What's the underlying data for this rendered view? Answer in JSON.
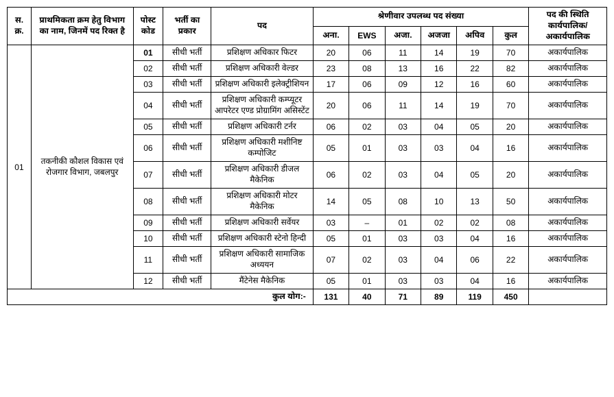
{
  "table": {
    "widths_pct": [
      4,
      17,
      5,
      8,
      17,
      6,
      6,
      6,
      6,
      6,
      6,
      13
    ],
    "header": {
      "sno": "स.\nक्र.",
      "dept": "प्राथमिकता क्रम हेतु विभाग का नाम, जिनमें पद रिक्त है",
      "postcode": "पोस्ट कोड",
      "rectype": "भर्ती का प्रकार",
      "post": "पद",
      "catgroup": "श्रेणीवार उपलब्ध पद संख्या",
      "c1": "अना.",
      "c2": "EWS",
      "c3": "अजा.",
      "c4": "अजजा",
      "c5": "अपिव",
      "c6": "कुल",
      "status": "पद की स्थिति कार्यपालिक/ अकार्यपालिक"
    },
    "dept_sno": "01",
    "dept_name": "तकनीकी कौशल विकास एवं रोजगार विभाग, जबलपुर",
    "rows": [
      {
        "code": "01",
        "type": "सीधी भर्ती",
        "post": "प्रशिक्षण अधिकार फिटर",
        "c1": "20",
        "c2": "06",
        "c3": "11",
        "c4": "14",
        "c5": "19",
        "c6": "70",
        "status": "अकार्यपालिक",
        "bold": true
      },
      {
        "code": "02",
        "type": "सीधी भर्ती",
        "post": "प्रशिक्षण अधिकारी वेल्डर",
        "c1": "23",
        "c2": "08",
        "c3": "13",
        "c4": "16",
        "c5": "22",
        "c6": "82",
        "status": "अकार्यपालिक"
      },
      {
        "code": "03",
        "type": "सीधी भर्ती",
        "post": "प्रशिक्षण अधिकारी इलेक्ट्रीशियन",
        "c1": "17",
        "c2": "06",
        "c3": "09",
        "c4": "12",
        "c5": "16",
        "c6": "60",
        "status": "अकार्यपालिक"
      },
      {
        "code": "04",
        "type": "सीधी भर्ती",
        "post": "प्रशिक्षण अधिकारी कम्प्यूटर आपरेटर एण्ड प्रोग्रामिंग असिस्टेंट",
        "c1": "20",
        "c2": "06",
        "c3": "11",
        "c4": "14",
        "c5": "19",
        "c6": "70",
        "status": "अकार्यपालिक"
      },
      {
        "code": "05",
        "type": "सीधी भर्ती",
        "post": "प्रशिक्षण अधिकारी टर्नर",
        "c1": "06",
        "c2": "02",
        "c3": "03",
        "c4": "04",
        "c5": "05",
        "c6": "20",
        "status": "अकार्यपालिक"
      },
      {
        "code": "06",
        "type": "सीधी भर्ती",
        "post": "प्रशिक्षण अधिकारी मशीनिष्ट कम्पोजिट",
        "c1": "05",
        "c2": "01",
        "c3": "03",
        "c4": "03",
        "c5": "04",
        "c6": "16",
        "status": "अकार्यपालिक"
      },
      {
        "code": "07",
        "type": "सीधी भर्ती",
        "post": "प्रशिक्षण अधिकारी डीजल मैकेनिक",
        "c1": "06",
        "c2": "02",
        "c3": "03",
        "c4": "04",
        "c5": "05",
        "c6": "20",
        "status": "अकार्यपालिक"
      },
      {
        "code": "08",
        "type": "सीधी भर्ती",
        "post": "प्रशिक्षण अधिकारी मोटर मैकेनिक",
        "c1": "14",
        "c2": "05",
        "c3": "08",
        "c4": "10",
        "c5": "13",
        "c6": "50",
        "status": "अकार्यपालिक"
      },
      {
        "code": "09",
        "type": "सीधी भर्ती",
        "post": "प्रशिक्षण अधिकारी सर्वेयर",
        "c1": "03",
        "c2": "–",
        "c3": "01",
        "c4": "02",
        "c5": "02",
        "c6": "08",
        "status": "अकार्यपालिक"
      },
      {
        "code": "10",
        "type": "सीधी भर्ती",
        "post": "प्रशिक्षण अधिकारी स्टेनो हिन्दी",
        "c1": "05",
        "c2": "01",
        "c3": "03",
        "c4": "03",
        "c5": "04",
        "c6": "16",
        "status": "अकार्यपालिक"
      },
      {
        "code": "11",
        "type": "सीधी भर्ती",
        "post": "प्रशिक्षण अधिकारी सामाजिक अध्ययन",
        "c1": "07",
        "c2": "02",
        "c3": "03",
        "c4": "04",
        "c5": "06",
        "c6": "22",
        "status": "अकार्यपालिक"
      },
      {
        "code": "12",
        "type": "सीधी भर्ती",
        "post": "मैंटेनेस मैकेनिक",
        "c1": "05",
        "c2": "01",
        "c3": "03",
        "c4": "03",
        "c5": "04",
        "c6": "16",
        "status": "अकार्यपालिक"
      }
    ],
    "total": {
      "label": "कुल योग:-",
      "c1": "131",
      "c2": "40",
      "c3": "71",
      "c4": "89",
      "c5": "119",
      "c6": "450"
    }
  }
}
